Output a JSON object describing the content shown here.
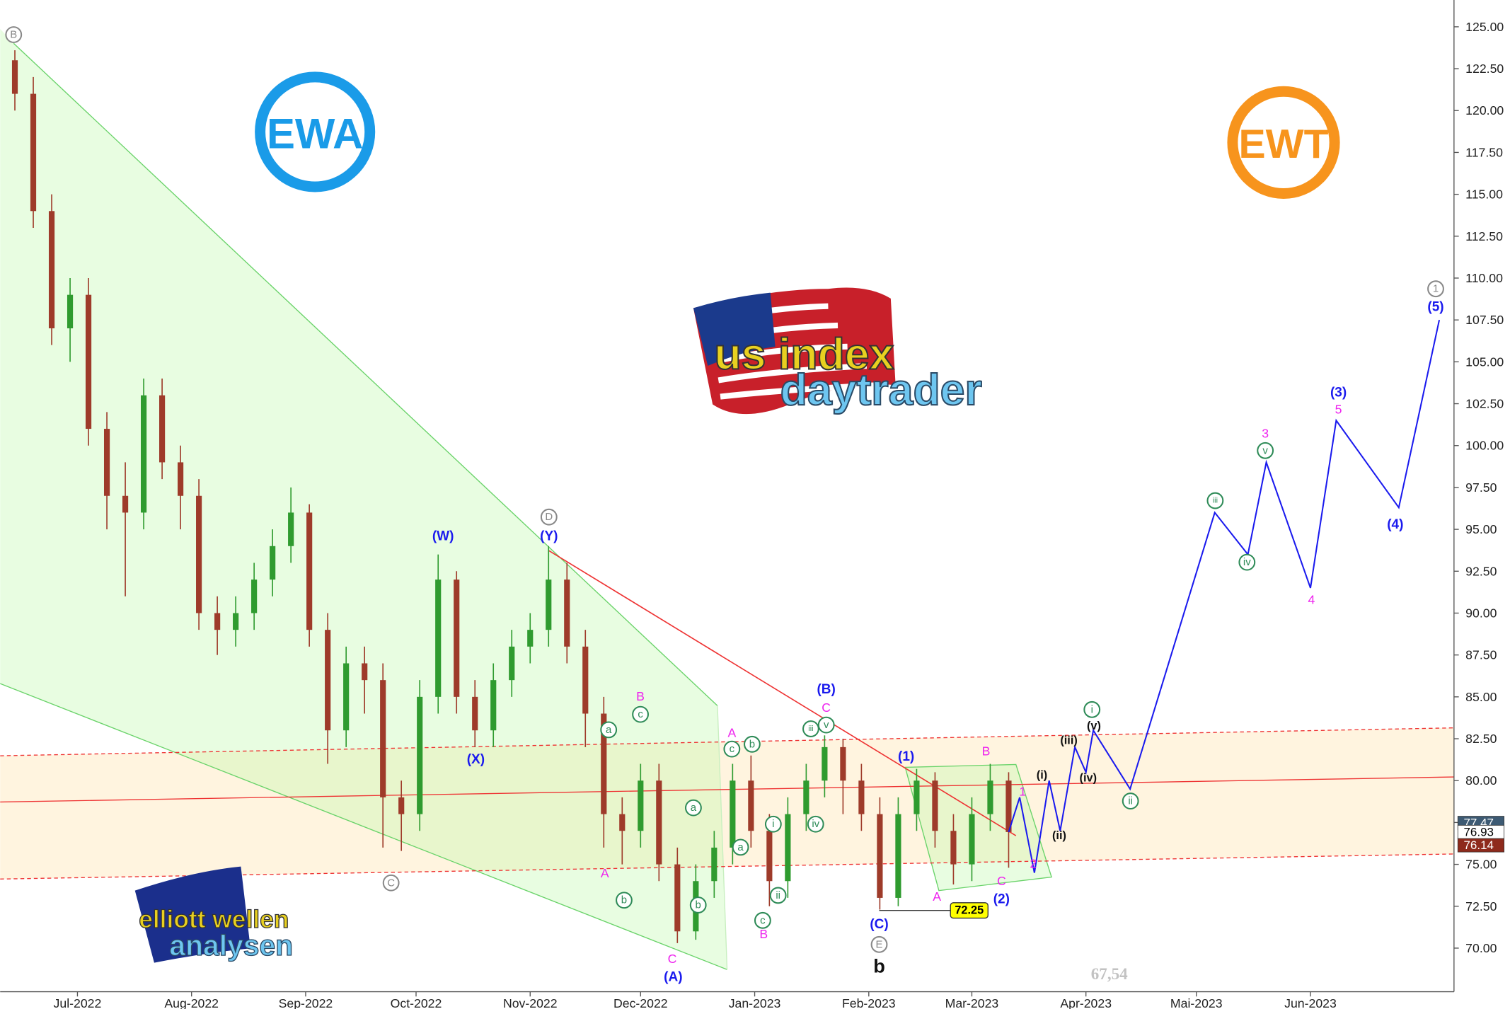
{
  "chart_data": {
    "type": "candlestick",
    "up_color": "#2f9b2f",
    "down_color": "#9e3b2a",
    "x": [
      -17,
      -12,
      -7,
      -2,
      3,
      8,
      13,
      18,
      23,
      28,
      33,
      38,
      43,
      48,
      53,
      58,
      63,
      68,
      73,
      78,
      83,
      88,
      93,
      98,
      103,
      108,
      113,
      118,
      123,
      128,
      133,
      138,
      143,
      148,
      153,
      158,
      163,
      168,
      173,
      178,
      183,
      188,
      193,
      198,
      203,
      208,
      213,
      218,
      223,
      228,
      233,
      238,
      243,
      248,
      253
    ],
    "open": [
      123,
      121,
      114,
      107,
      109,
      101,
      97,
      96,
      103,
      99,
      97,
      90,
      89,
      90,
      92,
      94,
      96,
      89,
      83,
      87,
      86,
      79,
      78,
      85,
      92,
      85,
      83,
      86,
      88,
      89,
      92,
      88,
      84,
      78,
      77,
      80,
      75,
      71,
      74,
      76,
      80,
      77,
      74,
      78,
      80,
      82,
      80,
      78,
      73,
      78,
      80,
      77,
      75,
      78,
      80
    ],
    "high": [
      123.6,
      122,
      115,
      110,
      110,
      102,
      99,
      104,
      104,
      100,
      98,
      91,
      91,
      93,
      95,
      97.5,
      96.5,
      90,
      88,
      88,
      87,
      80,
      86,
      93.5,
      92.5,
      86,
      87,
      89,
      90,
      94,
      93,
      89,
      85,
      79,
      81,
      81,
      76,
      75,
      77,
      81,
      81.5,
      78,
      79,
      81,
      82.7,
      82.5,
      81,
      79,
      79,
      80.7,
      80.5,
      78,
      79,
      81,
      80.5
    ],
    "low": [
      120,
      113,
      106,
      105,
      100,
      95,
      91,
      95,
      98,
      95,
      89,
      87.5,
      88,
      89,
      91,
      93,
      88,
      81,
      82,
      84,
      76,
      75.8,
      77,
      84,
      84,
      82,
      82,
      85,
      87,
      88,
      87,
      82,
      76,
      75,
      76,
      74,
      70.3,
      70.5,
      73,
      75,
      76,
      72.5,
      73,
      77,
      79,
      78,
      77,
      72.3,
      72.5,
      77,
      76,
      73.8,
      74,
      77,
      74.8
    ],
    "close": [
      121,
      114,
      107,
      109,
      101,
      97,
      96,
      103,
      99,
      97,
      90,
      89,
      90,
      92,
      94,
      96,
      89,
      83,
      87,
      86,
      79,
      78,
      85,
      92,
      85,
      83,
      86,
      88,
      89,
      92,
      88,
      84,
      78,
      77,
      80,
      75,
      71,
      74,
      76,
      80,
      77,
      74,
      78,
      80,
      82,
      80,
      78,
      73,
      78,
      80,
      77,
      75,
      78,
      80,
      76.93
    ],
    "projection": {
      "color": "#1a1aee",
      "x": [
        253,
        256,
        260,
        264,
        267,
        271,
        274,
        276,
        286,
        309,
        318,
        323,
        335,
        342,
        359,
        370
      ],
      "values": [
        76.93,
        79,
        74.5,
        80,
        77,
        82,
        80.5,
        83,
        79.5,
        96,
        93.5,
        99,
        91.5,
        101.5,
        96.3,
        107.5
      ]
    },
    "xlim": [
      -21,
      374
    ],
    "ylim": [
      67.4,
      126.6
    ],
    "xticks": [
      {
        "value": 0,
        "label": "Jul-2022"
      },
      {
        "value": 31,
        "label": "Aug-2022"
      },
      {
        "value": 62,
        "label": "Sep-2022"
      },
      {
        "value": 92,
        "label": "Oct-2022"
      },
      {
        "value": 123,
        "label": "Nov-2022"
      },
      {
        "value": 153,
        "label": "Dec-2022"
      },
      {
        "value": 184,
        "label": "Jan-2023"
      },
      {
        "value": 215,
        "label": "Feb-2023"
      },
      {
        "value": 243,
        "label": "Mar-2023"
      },
      {
        "value": 274,
        "label": "Apr-2023"
      },
      {
        "value": 304,
        "label": "Mai-2023"
      },
      {
        "value": 335,
        "label": "Jun-2023"
      }
    ],
    "yticks": [
      {
        "value": 70,
        "label": "70.00"
      },
      {
        "value": 72.5,
        "label": "72.50"
      },
      {
        "value": 75,
        "label": "75.00"
      },
      {
        "value": 77.5,
        "label": "77.50"
      },
      {
        "value": 80,
        "label": "80.00"
      },
      {
        "value": 82.5,
        "label": "82.50"
      },
      {
        "value": 85,
        "label": "85.00"
      },
      {
        "value": 87.5,
        "label": "87.50"
      },
      {
        "value": 90,
        "label": "90.00"
      },
      {
        "value": 92.5,
        "label": "92.50"
      },
      {
        "value": 95,
        "label": "95.00"
      },
      {
        "value": 97.5,
        "label": "97.50"
      },
      {
        "value": 100,
        "label": "100.00"
      },
      {
        "value": 102.5,
        "label": "102.50"
      },
      {
        "value": 105,
        "label": "105.00"
      },
      {
        "value": 107.5,
        "label": "107.50"
      },
      {
        "value": 110,
        "label": "110.00"
      },
      {
        "value": 112.5,
        "label": "112.50"
      },
      {
        "value": 115,
        "label": "115.00"
      },
      {
        "value": 117.5,
        "label": "117.50"
      },
      {
        "value": 120,
        "label": "120.00"
      },
      {
        "value": 122.5,
        "label": "122.50"
      },
      {
        "value": 125,
        "label": "125.00"
      }
    ],
    "price_tags": [
      {
        "value": 77.47,
        "color": "#3d5a73"
      },
      {
        "value": 76.93,
        "color": "#ffffff"
      },
      {
        "value": 76.14,
        "color": "#8e2a1c"
      }
    ],
    "low_marker": {
      "value": 72.25,
      "color": "#ffff00"
    },
    "watermark_price": "67,54",
    "wave_labels": [
      "B",
      "D",
      "C",
      "E",
      "1",
      "(W)",
      "(Y)",
      "(X)",
      "(A)",
      "(B)",
      "(C)",
      "(1)",
      "(2)",
      "(3)",
      "(4)",
      "(5)",
      "b",
      "B",
      "A",
      "C",
      "A",
      "B",
      "C",
      "B",
      "A",
      "C",
      "1",
      "2",
      "3",
      "5",
      "4",
      "a",
      "c",
      "b",
      "a",
      "b",
      "c",
      "b",
      "a",
      "c",
      "i",
      "ii",
      "iii",
      "v",
      "iv",
      "i",
      "ii",
      "iii",
      "iv",
      "v",
      "(i)",
      "(ii)",
      "(iii)",
      "(iv)",
      "(v)"
    ],
    "logos": {
      "left": "EWA",
      "right": "EWT",
      "brand_top": "us index",
      "brand_bottom": "daytrader",
      "ew_top": "elliott wellen",
      "ew_bottom": "analysen"
    }
  }
}
